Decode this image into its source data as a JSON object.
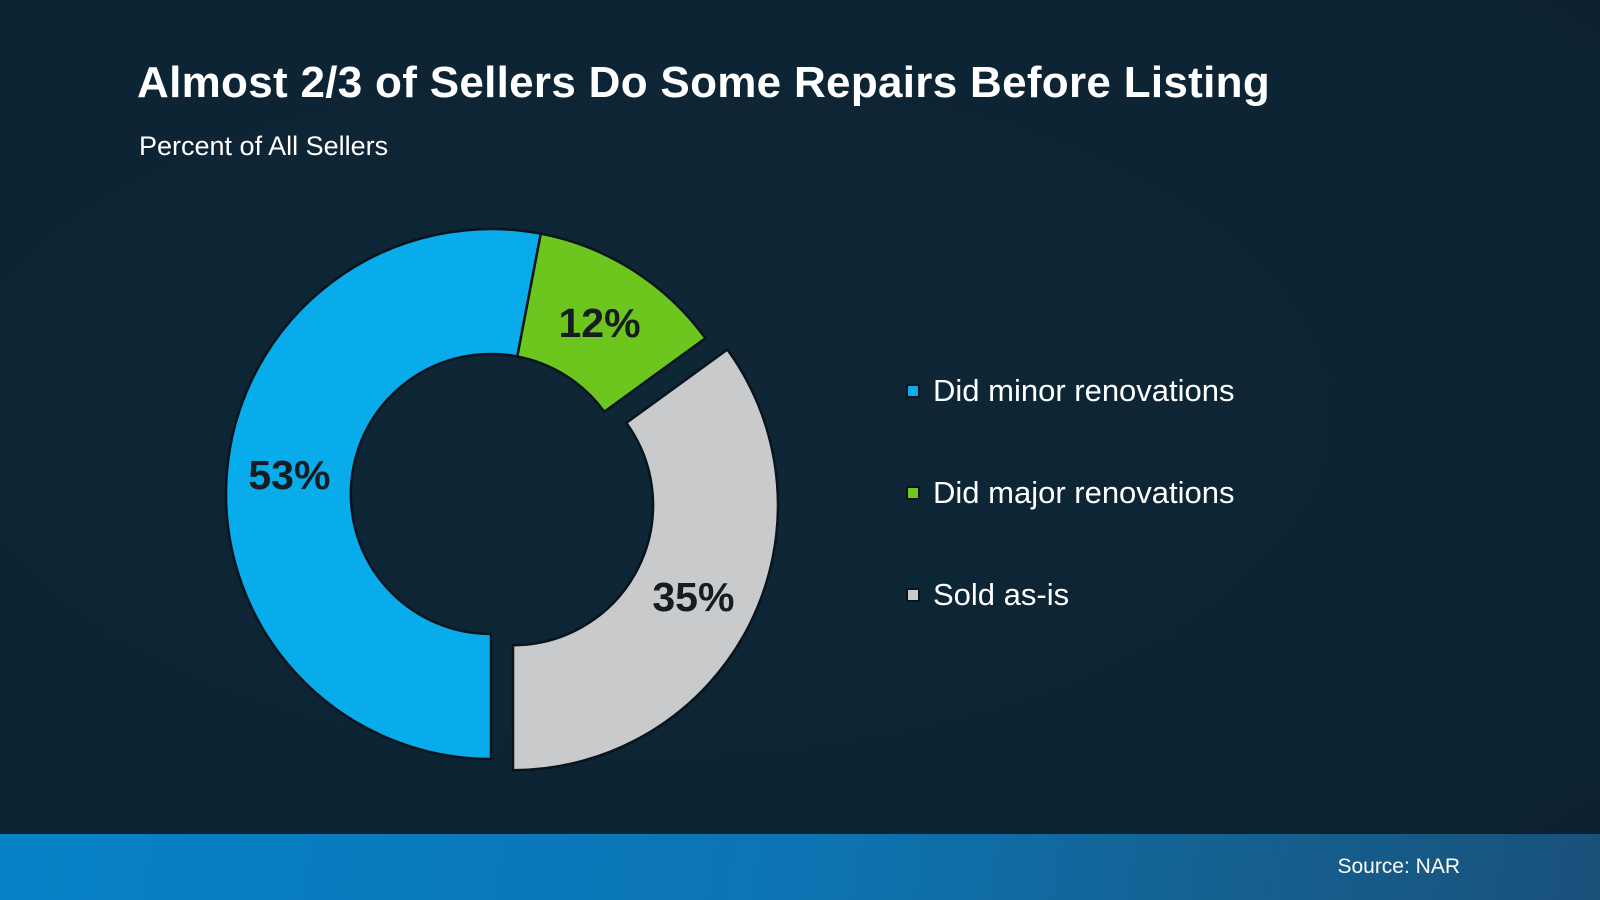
{
  "header": {
    "title": "Almost 2/3 of Sellers Do Some Repairs Before Listing",
    "subtitle": "Percent of All Sellers"
  },
  "footer": {
    "source": "Source: NAR"
  },
  "colors": {
    "background": "#0c2332",
    "title_text": "#ffffff",
    "legend_text": "#ffffff",
    "data_label_text": "#161c22",
    "slice_border": "#0a141d",
    "footer_gradient_left": "#0682c8",
    "footer_gradient_right": "#19507a"
  },
  "chart_data": {
    "type": "pie",
    "variant": "exploded-donut",
    "title": "Almost 2/3 of Sellers Do Some Repairs Before Listing",
    "subtitle": "Percent of All Sellers",
    "categories": [
      "Did minor renovations",
      "Did major renovations",
      "Sold as-is"
    ],
    "values": [
      53,
      12,
      35
    ],
    "data_labels": [
      "53%",
      "12%",
      "35%"
    ],
    "slice_colors": [
      "#09aceb",
      "#6cc61d",
      "#c8cacb"
    ],
    "legend_position": "right",
    "direction": "clockwise",
    "start_angle_deg": 10.8,
    "draw_order": [
      1,
      2,
      0
    ],
    "exploded_index": 2,
    "donut_hole_ratio": 0.53,
    "source": "Source: NAR"
  }
}
